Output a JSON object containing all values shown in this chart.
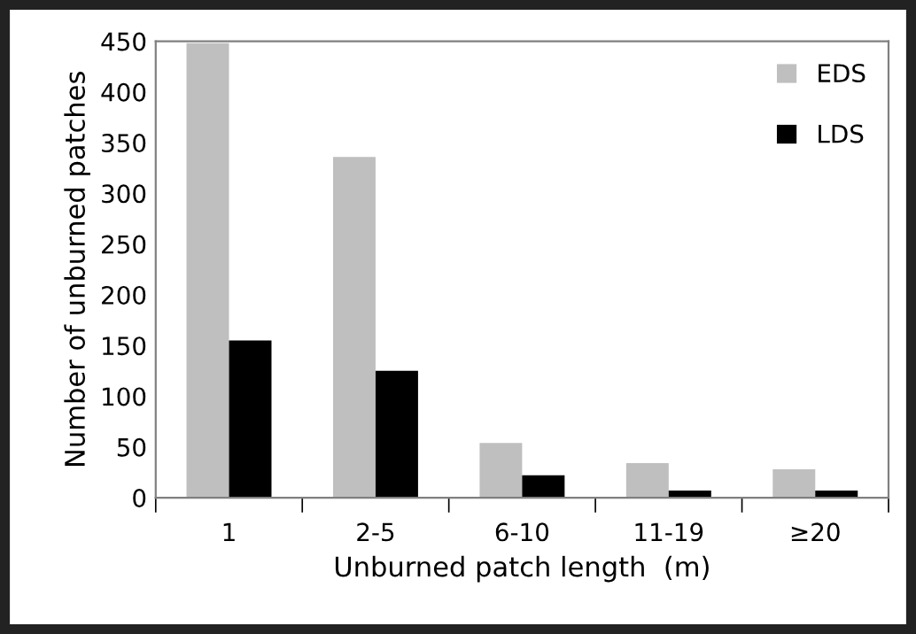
{
  "chart_data": {
    "type": "bar",
    "xlabel": "Unburned patch length  (m)",
    "ylabel": "Number of unburned patches",
    "categories": [
      "1",
      "2-5",
      "6-10",
      "11-19",
      "≥20"
    ],
    "series": [
      {
        "name": "EDS",
        "color": "#bfbfbf",
        "values": [
          448,
          336,
          54,
          34,
          28
        ]
      },
      {
        "name": "LDS",
        "color": "#000000",
        "values": [
          155,
          125,
          22,
          7,
          7
        ]
      }
    ],
    "ylim": [
      0,
      450
    ],
    "yticks": [
      0,
      50,
      100,
      150,
      200,
      250,
      300,
      350,
      400,
      450
    ],
    "grid": false,
    "legend": "top right"
  }
}
